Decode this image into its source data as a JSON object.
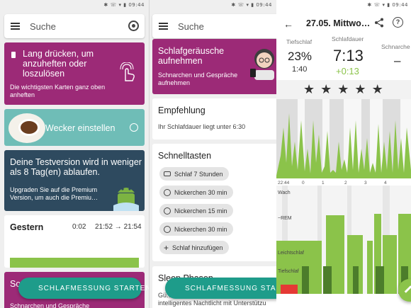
{
  "status_bar": {
    "time": "09:44",
    "icons_text": "✱ ☏ ▾ ▮"
  },
  "panel1": {
    "search_placeholder": "Suche",
    "card_pin": {
      "title": "Lang drücken, um anzuheften oder loszulösen",
      "subtitle": "Die wichtigsten Karten ganz oben anheften"
    },
    "card_alarm": {
      "title": "Wecker einstellen"
    },
    "card_trial": {
      "title": "Deine Testversion wird in weniger als 8 Tag(en) ablaufen.",
      "subtitle": "Upgraden Sie auf die Premium Version, um auch die Premiu…"
    },
    "card_yesterday": {
      "title": "Gestern",
      "duration": "0:02",
      "range": "21:52 → 21:54"
    },
    "card_bottom": {
      "title_fragment": "Sc",
      "subtitle_fragment": "Schnarchen und Gespräche"
    },
    "fab_label": "SCHLAFMESSUNG STARTEN"
  },
  "panel2": {
    "search_placeholder": "Suche",
    "card_record": {
      "title": "Schlafgeräusche aufnehmen",
      "subtitle": "Schnarchen und Gespräche aufnehmen"
    },
    "card_recommendation": {
      "title": "Empfehlung",
      "subtitle": "Ihr Schlafdauer liegt unter 6:30"
    },
    "card_shortcuts": {
      "title": "Schnelltasten",
      "items": [
        "Schlaf 7 Stunden",
        "Nickerchen 30 min",
        "Nickerchen 15 min",
        "Nickerchen 30 min",
        "Schlaf hinzufügen"
      ]
    },
    "card_next": {
      "title_fragment": "Sleep Phasen",
      "subtitle_fragment": "Gü…",
      "subtitle_line2": "intelligentes Nachtlicht mit Unterstützu"
    },
    "fab_label": "SCHLAFMESSUNG STARTEN"
  },
  "panel3": {
    "title": "27.05. Mittwo…",
    "stats": [
      {
        "label": "Tiefschlaf",
        "value": "23%",
        "sub": "1:40"
      },
      {
        "label": "Schlafdauer",
        "value": "7:13",
        "sub": "+0:13"
      },
      {
        "label": "Schnarche",
        "value": "–",
        "sub": ""
      }
    ],
    "rating_stars": 5,
    "time_axis": [
      "22:44",
      "0",
      "1",
      "2",
      "3",
      "4"
    ],
    "hypnogram_labels": [
      "Wach",
      "~REM",
      "Leichtschlaf",
      "Tiefschlaf"
    ],
    "colors": {
      "primary": "#8bc34a",
      "dark": "#4c7d2b",
      "wake_gray": "#dddddd",
      "deep_red": "#e53935"
    }
  },
  "colors": {
    "magenta": "#9c2a77",
    "teal": "#6fbdb7",
    "navy": "#2e4a5f",
    "fab": "#1e9c8a",
    "yesterday_bar": "#8bc34a"
  }
}
